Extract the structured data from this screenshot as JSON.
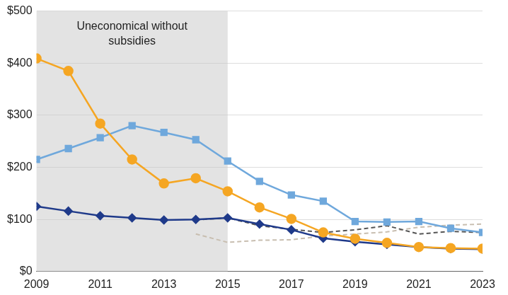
{
  "chart_data": {
    "type": "line",
    "x": [
      2009,
      2010,
      2011,
      2012,
      2013,
      2014,
      2015,
      2016,
      2017,
      2018,
      2019,
      2020,
      2021,
      2022,
      2023
    ],
    "xlim": [
      2009,
      2023
    ],
    "xticks": [
      2009,
      2011,
      2013,
      2015,
      2017,
      2019,
      2021,
      2023
    ],
    "ylim": [
      0,
      500
    ],
    "yticks": [
      {
        "value": 0,
        "label": "$0"
      },
      {
        "value": 100,
        "label": "$100"
      },
      {
        "value": 200,
        "label": "$200"
      },
      {
        "value": 300,
        "label": "$300"
      },
      {
        "value": 400,
        "label": "$400"
      },
      {
        "value": 500,
        "label": "$500"
      }
    ],
    "grid": "y",
    "annotations": [
      {
        "text": [
          "Uneconomical without",
          "subsidies"
        ],
        "x_start": 2009,
        "x_end": 2015
      }
    ],
    "series": [
      {
        "color": "#f5a623",
        "marker": "circle",
        "line_style": "solid",
        "values": [
          409,
          385,
          284,
          215,
          169,
          179,
          154,
          123,
          101,
          75,
          63,
          55,
          47,
          45,
          44
        ]
      },
      {
        "color": "#6fa8dc",
        "marker": "square",
        "line_style": "solid",
        "values": [
          215,
          236,
          257,
          280,
          267,
          253,
          212,
          173,
          147,
          135,
          96,
          95,
          96,
          83,
          75
        ]
      },
      {
        "color": "#1f3a8a",
        "marker": "diamond",
        "line_style": "solid",
        "values": [
          125,
          116,
          107,
          103,
          99,
          100,
          103,
          91,
          80,
          64,
          57,
          52,
          47,
          44,
          43
        ]
      },
      {
        "color": "#555555",
        "marker": "none",
        "line_style": "dashed",
        "values": [
          null,
          null,
          null,
          null,
          null,
          99,
          103,
          88,
          81,
          75,
          80,
          88,
          72,
          77,
          75
        ]
      },
      {
        "color": "#c8beb0",
        "marker": "none",
        "line_style": "dashed",
        "values": [
          null,
          null,
          null,
          null,
          null,
          72,
          56,
          60,
          61,
          68,
          72,
          76,
          85,
          89,
          91
        ]
      }
    ]
  }
}
